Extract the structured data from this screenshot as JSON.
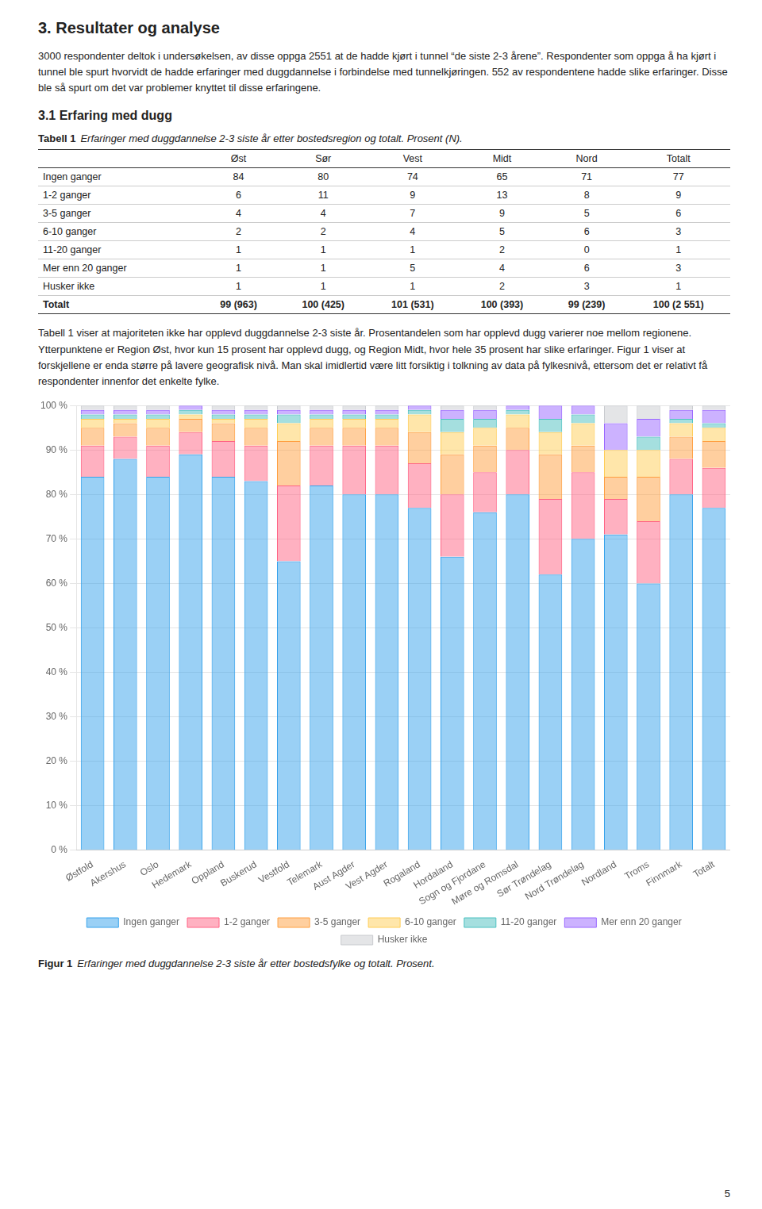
{
  "chart_data": [
    {
      "type": "table",
      "annotations": [
        "3.  Resultater og analyse",
        "3000 respondenter deltok i undersøkelsen, av disse oppga 2551 at de hadde kjørt i tunnel “de siste 2-3 årene”. Respondenter som oppga å ha kjørt i tunnel ble spurt hvorvidt de hadde erfaringer med duggdannelse i forbindelse med tunnelkjøringen. 552 av respondentene hadde slike erfaringer. Disse ble så spurt om det var problemer knyttet til disse erfaringene.",
        "3.1   Erfaring med dugg"
      ],
      "title": "Tabell 1",
      "subtitle": "Erfaringer med duggdannelse 2-3 siste år etter bostedsregion og totalt. Prosent (N).",
      "columns": [
        null,
        "Øst",
        "Sør",
        "Vest",
        "Midt",
        "Nord",
        "Totalt"
      ],
      "rows": [
        [
          "Ingen ganger",
          "84",
          "80",
          "74",
          "65",
          "71",
          "77"
        ],
        [
          "1-2 ganger",
          "6",
          "11",
          "9",
          "13",
          "8",
          "9"
        ],
        [
          "3-5 ganger",
          "4",
          "4",
          "7",
          "9",
          "5",
          "6"
        ],
        [
          "6-10 ganger",
          "2",
          "2",
          "4",
          "5",
          "6",
          "3"
        ],
        [
          "11-20 ganger",
          "1",
          "1",
          "1",
          "2",
          "0",
          "1"
        ],
        [
          "Mer enn 20 ganger",
          "1",
          "1",
          "5",
          "4",
          "6",
          "3"
        ],
        [
          "Husker ikke",
          "1",
          "1",
          "1",
          "2",
          "3",
          "1"
        ],
        [
          "Totalt",
          "99 (963)",
          "100 (425)",
          "101 (531)",
          "100 (393)",
          "99 (239)",
          "100 (2 551)"
        ]
      ]
    },
    {
      "type": "bar",
      "annotations": [
        "Tabell 1 viser at majoriteten ikke har opplevd duggdannelse 2-3 siste år. Prosentandelen som har opplevd dugg varierer noe mellom regionene. Ytterpunktene er Region Øst, hvor kun 15 prosent har opplevd dugg, og Region Midt, hvor hele 35 prosent har slike erfaringer. Figur 1 viser at forskjellene er enda større på lavere geografisk nivå. Man skal imidlertid være litt forsiktig i tolkning av data på fylkesnivå, ettersom det er relativt få respondenter innenfor det enkelte fylke.",
        "5"
      ],
      "title": "Figur 1",
      "subtitle": "Erfaringer med duggdannelse 2-3 siste år etter bostedsfylke og totalt. Prosent.",
      "stacked": true,
      "grid": true,
      "legend": "bottom",
      "categories": [
        "Østfold",
        "Akershus",
        "Oslo",
        "Hedemark",
        "Oppland",
        "Buskerud",
        "Vestfold",
        "Telemark",
        "Aust Agder",
        "Vest Agder",
        "Rogaland",
        "Hordaland",
        "Sogn og Fjordane",
        "Møre og Romsdal",
        "Sør Trøndelag",
        "Nord Trøndelag",
        "Nordland",
        "Troms",
        "Finnmark",
        "Totalt"
      ],
      "series": [
        {
          "name": "Ingen ganger",
          "values": [
            84,
            88,
            84,
            89,
            84,
            83,
            65,
            82,
            80,
            80,
            77,
            66,
            76,
            80,
            62,
            70,
            71,
            60,
            80,
            77
          ]
        },
        {
          "name": "1-2 ganger",
          "values": [
            7,
            5,
            7,
            5,
            8,
            8,
            17,
            9,
            11,
            11,
            10,
            14,
            9,
            10,
            17,
            15,
            8,
            14,
            8,
            9
          ]
        },
        {
          "name": "3-5 ganger",
          "values": [
            4,
            3,
            4,
            3,
            4,
            4,
            10,
            4,
            4,
            4,
            7,
            9,
            6,
            5,
            10,
            6,
            5,
            10,
            5,
            6
          ]
        },
        {
          "name": "6-10 ganger",
          "values": [
            2,
            1,
            2,
            1,
            1,
            2,
            4,
            2,
            2,
            2,
            4,
            5,
            4,
            3,
            5,
            5,
            6,
            6,
            3,
            3
          ]
        },
        {
          "name": "11-20 ganger",
          "values": [
            1,
            1,
            1,
            1,
            1,
            1,
            2,
            1,
            1,
            1,
            1,
            3,
            2,
            1,
            3,
            2,
            0,
            3,
            1,
            1
          ]
        },
        {
          "name": "Mer enn 20 ganger",
          "values": [
            1,
            1,
            1,
            1,
            1,
            1,
            1,
            1,
            1,
            1,
            1,
            2,
            2,
            1,
            3,
            2,
            6,
            4,
            2,
            3
          ]
        },
        {
          "name": "Husker ikke",
          "values": [
            1,
            1,
            1,
            0,
            1,
            1,
            1,
            1,
            1,
            1,
            0,
            1,
            1,
            0,
            0,
            0,
            4,
            3,
            1,
            1
          ]
        }
      ],
      "ylim": [
        0,
        100
      ],
      "yticks": [
        {
          "value": 0,
          "label": "0 %"
        },
        {
          "value": 10,
          "label": "10 %"
        },
        {
          "value": 20,
          "label": "20 %"
        },
        {
          "value": 30,
          "label": "30 %"
        },
        {
          "value": 40,
          "label": "40 %"
        },
        {
          "value": 50,
          "label": "50 %"
        },
        {
          "value": 60,
          "label": "60 %"
        },
        {
          "value": 70,
          "label": "70 %"
        },
        {
          "value": 80,
          "label": "80 %"
        },
        {
          "value": 90,
          "label": "90 %"
        },
        {
          "value": 100,
          "label": "100 %"
        }
      ]
    }
  ]
}
